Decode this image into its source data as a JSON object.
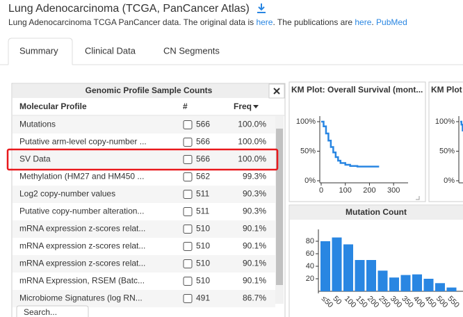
{
  "header": {
    "title": "Lung Adenocarcinoma (TCGA, PanCancer Atlas)",
    "description": [
      "Lung Adenocarcinoma TCGA PanCancer data. The original data is ",
      "here",
      ". The publications are ",
      "here",
      ". ",
      "PubMed"
    ]
  },
  "tabs": {
    "items": [
      "Summary",
      "Clinical Data",
      "CN Segments"
    ],
    "active": 0
  },
  "table": {
    "title": "Genomic Profile Sample Counts",
    "columns": [
      "Molecular Profile",
      "#",
      "Freq"
    ],
    "rows": [
      [
        "Mutations",
        566,
        "100.0%"
      ],
      [
        "Putative arm-level copy-number ...",
        566,
        "100.0%"
      ],
      [
        "SV Data",
        566,
        "100.0%"
      ],
      [
        "Methylation (HM27 and HM450 ...",
        562,
        "99.3%"
      ],
      [
        "Log2 copy-number values",
        511,
        "90.3%"
      ],
      [
        "Putative copy-number alteration...",
        511,
        "90.3%"
      ],
      [
        "mRNA expression z-scores relat...",
        510,
        "90.1%"
      ],
      [
        "mRNA expression z-scores relat...",
        510,
        "90.1%"
      ],
      [
        "mRNA expression z-scores relat...",
        510,
        "90.1%"
      ],
      [
        "mRNA Expression, RSEM (Batc...",
        510,
        "90.1%"
      ],
      [
        "Microbiome Signatures (log RN...",
        491,
        "86.7%"
      ]
    ],
    "highlighted_row": 2,
    "search_placeholder": "Search..."
  },
  "charts": [
    {
      "type": "line",
      "title": "KM Plot: Overall Survival (mont...",
      "color": "#2986e2",
      "x": [
        0,
        10,
        20,
        30,
        40,
        50,
        60,
        70,
        80,
        100,
        120,
        150,
        200,
        240
      ],
      "values": [
        100,
        92,
        80,
        68,
        57,
        48,
        40,
        34,
        30,
        27,
        25,
        24,
        24,
        24
      ],
      "xlim": [
        0,
        360
      ],
      "ylim": [
        0,
        100
      ],
      "xticks": [
        0,
        100,
        200,
        300
      ],
      "yticks": [
        {
          "value": 0,
          "label": "0%"
        },
        {
          "value": 50,
          "label": "50%"
        },
        {
          "value": 100,
          "label": "100%"
        }
      ]
    },
    {
      "type": "line",
      "title": "KM Plot",
      "color": "#2986e2",
      "x": [
        0,
        5,
        10,
        15
      ],
      "values": [
        100,
        95,
        85,
        75
      ],
      "xlim": [
        0,
        360
      ],
      "ylim": [
        0,
        100
      ],
      "yticks": [
        {
          "value": 0,
          "label": "0%"
        },
        {
          "value": 50,
          "label": "50%"
        },
        {
          "value": 100,
          "label": "100%"
        }
      ]
    },
    {
      "type": "bar",
      "title": "Mutation Count",
      "color": "#2986e2",
      "categories": [
        "≤50",
        "50",
        "100",
        "150",
        "200",
        "250",
        "300",
        "350",
        "400",
        "450",
        "500",
        "550"
      ],
      "values": [
        80,
        86,
        75,
        50,
        50,
        33,
        22,
        26,
        27,
        20,
        13,
        6
      ],
      "ylim": [
        0,
        90
      ],
      "yticks": [
        20,
        40,
        60,
        80
      ]
    }
  ]
}
